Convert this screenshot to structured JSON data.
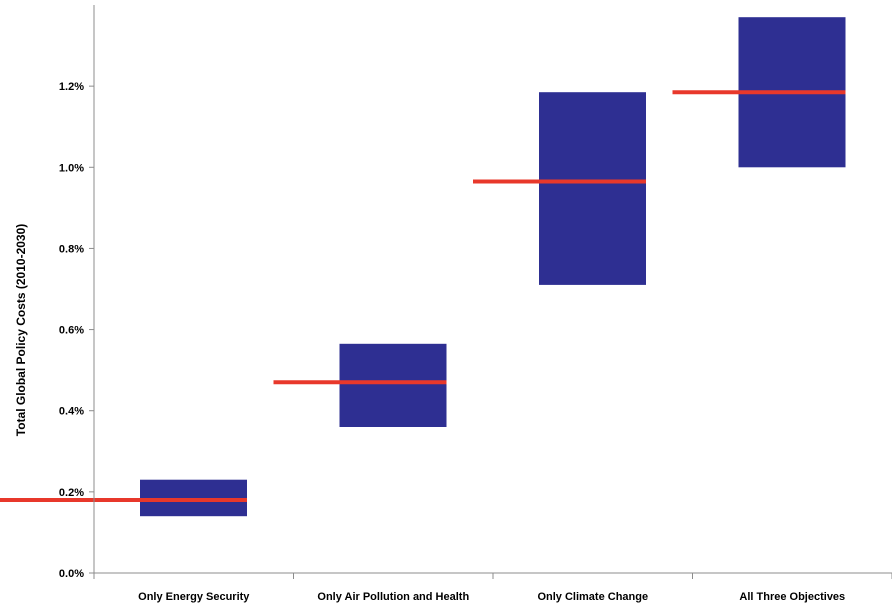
{
  "chart_data": {
    "type": "bar",
    "title": "",
    "xlabel": "",
    "ylabel": "Total Global Policy Costs (2010-2030)",
    "ylim": [
      0,
      1.4
    ],
    "y_ticks": [
      0.0,
      0.2,
      0.4,
      0.6,
      0.8,
      1.0,
      1.2
    ],
    "y_tick_labels": [
      "0.0%",
      "0.2%",
      "0.4%",
      "0.6%",
      "0.8%",
      "1.0%",
      "1.2%"
    ],
    "y_unit": "%",
    "grid": false,
    "categories": [
      "Only Energy Security",
      "Only Air Pollution and Health",
      "Only Climate Change",
      "All Three Objectives"
    ],
    "ranges": [
      {
        "low": 0.14,
        "high": 0.23
      },
      {
        "low": 0.36,
        "high": 0.565
      },
      {
        "low": 0.71,
        "high": 1.185
      },
      {
        "low": 1.0,
        "high": 1.37
      }
    ],
    "reference_values": [
      0.18,
      0.47,
      0.965,
      1.185
    ],
    "colors": {
      "range_fill": "#2e2f92",
      "reference_line": "#e8382b",
      "axis": "#8c8c8c"
    }
  }
}
